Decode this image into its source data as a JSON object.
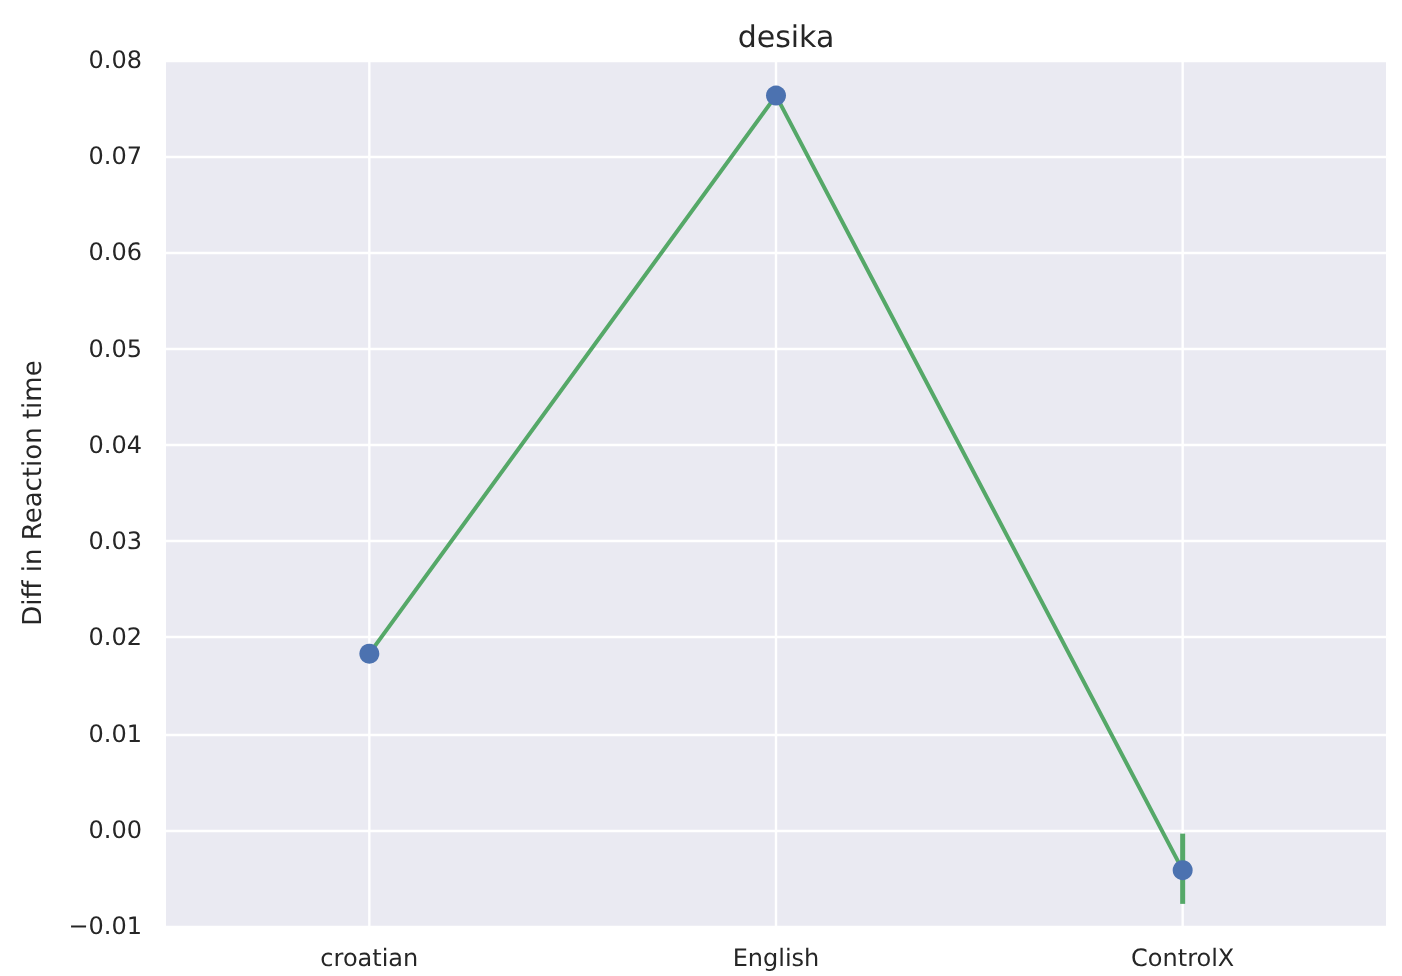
{
  "chart_data": {
    "type": "line",
    "title": "desika",
    "ylabel": "Diff in Reaction time",
    "categories": [
      "croatian",
      "English",
      "ControlX"
    ],
    "series": [
      {
        "type": "line",
        "color": "#55a868",
        "values": [
          0.0183,
          0.0763,
          -0.0042
        ],
        "errors": [
          null,
          null,
          [
            -0.0077,
            -0.0004
          ]
        ],
        "marker": "none",
        "line_style": "solid"
      },
      {
        "type": "scatter",
        "color": "#4c72b0",
        "x": [
          "croatian",
          "English",
          "ControlX"
        ],
        "values": [
          0.0183,
          0.0763,
          -0.0042
        ],
        "marker": "circle"
      }
    ],
    "ylim": [
      -0.01,
      0.08
    ],
    "yticks": [
      {
        "value": -0.01,
        "label": "−0.01"
      },
      {
        "value": 0,
        "label": "0.00"
      },
      {
        "value": 0.01,
        "label": "0.01"
      },
      {
        "value": 0.02,
        "label": "0.02"
      },
      {
        "value": 0.03,
        "label": "0.03"
      },
      {
        "value": 0.04,
        "label": "0.04"
      },
      {
        "value": 0.05,
        "label": "0.05"
      },
      {
        "value": 0.06,
        "label": "0.06"
      },
      {
        "value": 0.07,
        "label": "0.07"
      },
      {
        "value": 0.08,
        "label": "0.08"
      }
    ],
    "grid": true
  }
}
